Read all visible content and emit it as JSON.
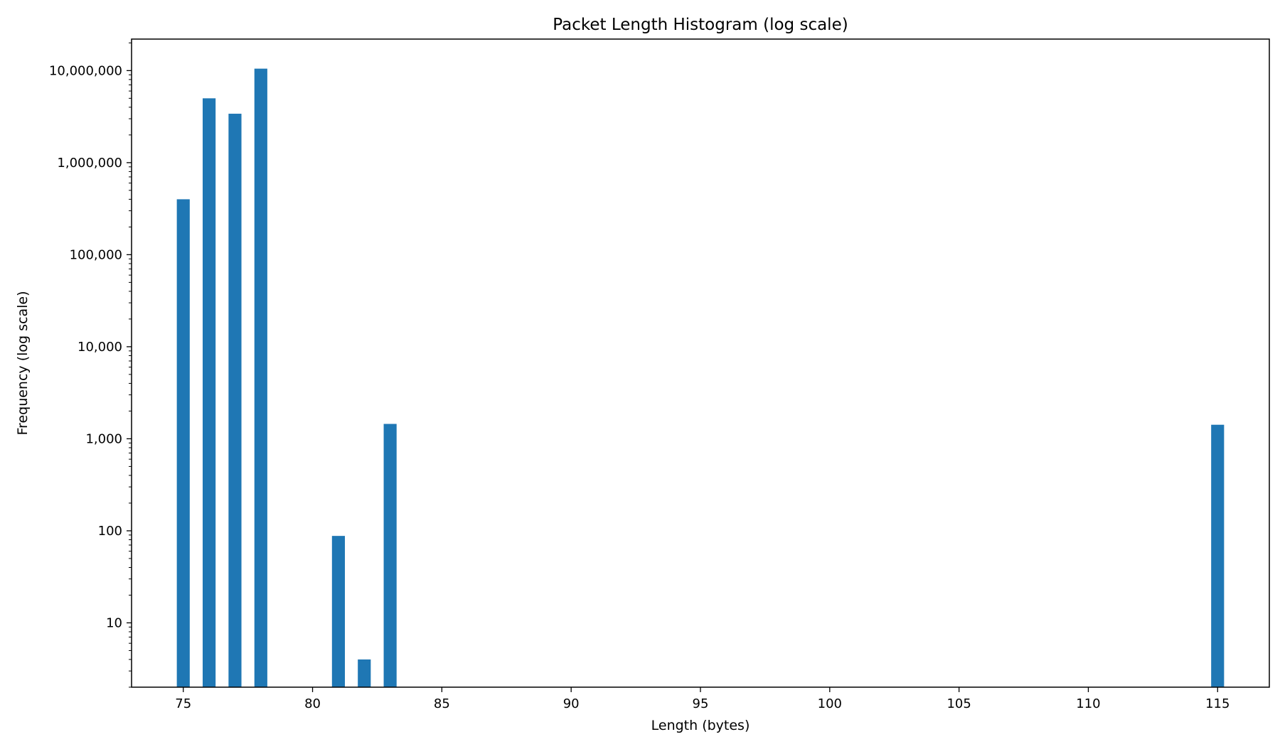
{
  "chart_data": {
    "type": "bar",
    "title": "Packet Length Histogram (log scale)",
    "xlabel": "Length (bytes)",
    "ylabel": "Frequency (log scale)",
    "yscale": "log",
    "xlim": [
      73,
      117
    ],
    "ylim": [
      2,
      22000000
    ],
    "grid": false,
    "legend": "none",
    "bar_color": "#1f77b4",
    "x_ticks": [
      75,
      80,
      85,
      90,
      95,
      100,
      105,
      110,
      115
    ],
    "x_tick_labels": [
      "75",
      "80",
      "85",
      "90",
      "95",
      "100",
      "105",
      "110",
      "115"
    ],
    "y_ticks": [
      10,
      100,
      1000,
      10000,
      100000,
      1000000,
      10000000
    ],
    "y_tick_labels": [
      "10",
      "100",
      "1,000",
      "10,000",
      "100,000",
      "1,000,000",
      "10,000,000"
    ],
    "bars": [
      {
        "length": 75,
        "frequency": 400000
      },
      {
        "length": 76,
        "frequency": 5000000
      },
      {
        "length": 77,
        "frequency": 3400000
      },
      {
        "length": 78,
        "frequency": 10500000
      },
      {
        "length": 81,
        "frequency": 88
      },
      {
        "length": 82,
        "frequency": 4
      },
      {
        "length": 83,
        "frequency": 1450
      },
      {
        "length": 115,
        "frequency": 1420
      }
    ]
  }
}
